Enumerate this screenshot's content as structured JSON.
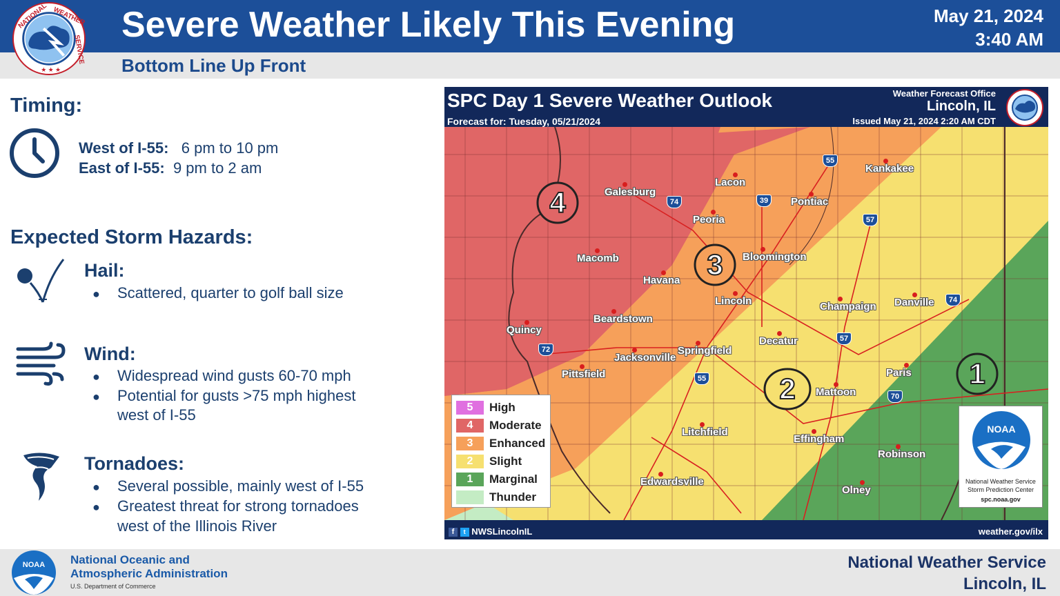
{
  "header": {
    "title": "Severe Weather Likely This Evening",
    "date": "May 21, 2024",
    "time": "3:40 AM",
    "subtitle": "Bottom Line Up Front",
    "logo_text": "NATIONAL WEATHER SERVICE"
  },
  "timing": {
    "heading": "Timing:",
    "west_label": "West of I-55:",
    "west_value": "6 pm to 10 pm",
    "east_label": "East of I-55:",
    "east_value": "9 pm to 2 am"
  },
  "hazards": {
    "heading": "Expected Storm Hazards:",
    "hail": {
      "title": "Hail:",
      "bullets": [
        "Scattered, quarter to golf ball size"
      ]
    },
    "wind": {
      "title": "Wind:",
      "bullets": [
        "Widespread wind gusts 60-70 mph",
        "Potential for gusts >75 mph highest",
        "west of I-55"
      ]
    },
    "tornadoes": {
      "title": "Tornadoes:",
      "bullets": [
        "Several possible, mainly west of I-55",
        "Greatest threat for strong tornadoes",
        "west of the Illinois River"
      ]
    },
    "bullet_glyph": "●"
  },
  "map": {
    "title": "SPC Day 1 Severe Weather Outlook",
    "forecast_for": "Forecast for: Tuesday, 05/21/2024",
    "office_line1": "Weather Forecast Office",
    "office_line2": "Lincoln, IL",
    "issued": "Issued May 21, 2024 2:20 AM CDT",
    "footer_left": "NWSLincolnIL",
    "footer_right": "weather.gov/ilx",
    "risk_labels": [
      "4",
      "3",
      "2",
      "1"
    ],
    "cities": [
      "Galesburg",
      "Lacon",
      "Kankakee",
      "Pontiac",
      "Peoria",
      "Macomb",
      "Bloomington",
      "Havana",
      "Lincoln",
      "Champaign",
      "Danville",
      "Beardstown",
      "Quincy",
      "Decatur",
      "Jacksonville",
      "Springfield",
      "Pittsfield",
      "Paris",
      "Mattoon",
      "Litchfield",
      "Effingham",
      "Robinson",
      "Edwardsville",
      "Olney"
    ],
    "interstates": [
      "55",
      "74",
      "39",
      "57",
      "74",
      "57",
      "72",
      "55",
      "70"
    ],
    "legend": [
      {
        "num": "5",
        "label": "High",
        "color": "#e070e0"
      },
      {
        "num": "4",
        "label": "Moderate",
        "color": "#e06666"
      },
      {
        "num": "3",
        "label": "Enhanced",
        "color": "#f6a05a"
      },
      {
        "num": "2",
        "label": "Slight",
        "color": "#f6e070"
      },
      {
        "num": "1",
        "label": "Marginal",
        "color": "#5aa55a"
      },
      {
        "num": "",
        "label": "Thunder",
        "color": "#c4ecc4"
      }
    ],
    "spc_brand": "NOAA",
    "spc_line1": "National Weather Service",
    "spc_line2": "Storm Prediction Center",
    "spc_line3": "spc.noaa.gov"
  },
  "footer": {
    "noaa_brand": "NOAA",
    "noaa_line1": "National Oceanic and",
    "noaa_line2": "Atmospheric Administration",
    "noaa_dept": "U.S. Department of Commerce",
    "nws_line1": "National Weather Service",
    "nws_line2": "Lincoln, IL"
  },
  "colors": {
    "header_blue": "#1c4f99",
    "text_navy": "#1b3f6e",
    "moderate": "#e06666",
    "enhanced": "#f6a05a",
    "slight": "#f6e070",
    "marginal": "#5aa55a"
  }
}
